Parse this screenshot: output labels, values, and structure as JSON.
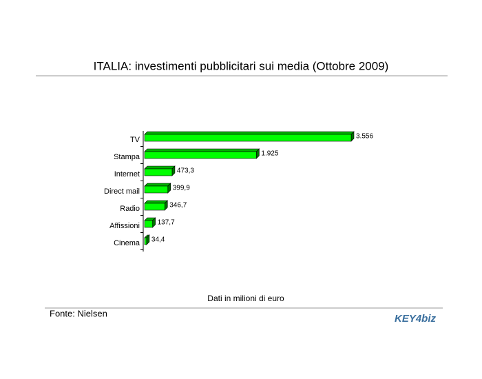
{
  "chart_data": {
    "type": "bar",
    "orientation": "horizontal",
    "title": "ITALIA: investimenti pubblicitari sui media (Ottobre 2009)",
    "categories": [
      "TV",
      "Stampa",
      "Internet",
      "Direct mail",
      "Radio",
      "Affissioni",
      "Cinema"
    ],
    "values": [
      3556,
      1925,
      473.3,
      399.9,
      346.7,
      137.7,
      34.4
    ],
    "value_labels": [
      "3.556",
      "1.925",
      "473,3",
      "399,9",
      "346,7",
      "137,7",
      "34,4"
    ],
    "color": "#00ff00",
    "note": "Dati in milioni di euro",
    "source": "Fonte: Nielsen",
    "logo": "KEY4biz"
  }
}
